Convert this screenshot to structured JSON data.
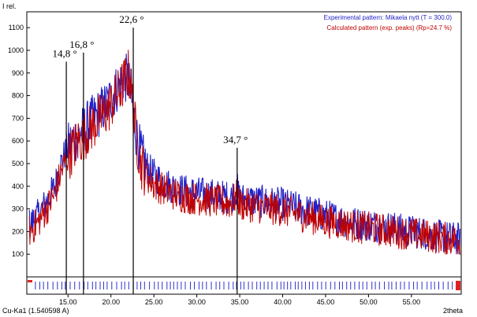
{
  "chart_data": {
    "type": "line",
    "ylabel": "I rel.",
    "xlabel": "2theta",
    "xlim": [
      10.2,
      60.8
    ],
    "ylim": [
      0,
      1170
    ],
    "x_ticks": [
      15,
      20,
      25,
      30,
      35,
      40,
      45,
      50,
      55
    ],
    "x_tick_labels": [
      "15.00",
      "20.00",
      "25.00",
      "30.00",
      "35.00",
      "40.00",
      "45.00",
      "50.00",
      "55.00"
    ],
    "y_ticks": [
      100,
      200,
      300,
      400,
      500,
      600,
      700,
      800,
      900,
      1000,
      1100
    ],
    "y_tick_labels": [
      "100",
      "200",
      "300",
      "400",
      "500",
      "600",
      "700",
      "800",
      "900",
      "1000",
      "1100"
    ],
    "wavelength_label": "Cu-Ka1 (1.540598 A)",
    "legend": {
      "position": "top-right",
      "entries": [
        {
          "label": "Experimental pattern: Mikaela nytt (T = 300.0)",
          "color": "#1f1fc8"
        },
        {
          "label": "Calculated pattern (exp. peaks) (Rp=24.7 %)",
          "color": "#c00000"
        }
      ]
    },
    "annotations": [
      {
        "label": "14,8 °",
        "x": 14.8,
        "y": 950
      },
      {
        "label": "16,8 °",
        "x": 16.8,
        "y": 990
      },
      {
        "label": "22,6 °",
        "x": 22.6,
        "y": 1100
      },
      {
        "label": "34,7 °",
        "x": 34.7,
        "y": 570
      }
    ],
    "series": [
      {
        "name": "Experimental pattern: Mikaela nytt (T = 300.0)",
        "color": "#1f1fc8",
        "x": [
          10.5,
          11.5,
          12.5,
          13.5,
          14.0,
          14.8,
          15.5,
          16.0,
          16.8,
          17.5,
          18.0,
          18.5,
          19.0,
          19.5,
          20.0,
          20.5,
          21.0,
          21.5,
          22.0,
          22.3,
          22.6,
          23.0,
          23.5,
          24.0,
          24.5,
          25.0,
          26.0,
          27.0,
          28.0,
          29.0,
          30.0,
          31.0,
          32.0,
          33.0,
          34.0,
          34.7,
          35.0,
          36.0,
          37.0,
          38.0,
          39.0,
          40.0,
          41.0,
          42.0,
          43.0,
          44.0,
          45.0,
          46.0,
          47.0,
          48.0,
          49.0,
          50.0,
          51.0,
          52.0,
          53.0,
          54.0,
          55.0,
          56.0,
          57.0,
          58.0,
          59.0,
          60.0,
          60.7
        ],
        "values": [
          230,
          270,
          330,
          400,
          480,
          560,
          600,
          620,
          650,
          680,
          700,
          720,
          740,
          760,
          790,
          820,
          850,
          880,
          870,
          820,
          720,
          620,
          540,
          500,
          470,
          450,
          420,
          400,
          385,
          375,
          370,
          365,
          360,
          355,
          350,
          390,
          345,
          340,
          335,
          330,
          325,
          320,
          310,
          300,
          290,
          280,
          270,
          260,
          250,
          240,
          235,
          230,
          225,
          220,
          215,
          205,
          200,
          195,
          190,
          180,
          175,
          170,
          165
        ]
      },
      {
        "name": "Calculated pattern (exp. peaks) (Rp=24.7 %)",
        "color": "#c00000",
        "x": [
          10.5,
          11.5,
          12.5,
          13.5,
          14.0,
          14.8,
          15.5,
          16.0,
          16.8,
          17.5,
          18.0,
          18.5,
          19.0,
          19.5,
          20.0,
          20.5,
          21.0,
          21.5,
          22.0,
          22.3,
          22.6,
          23.0,
          23.5,
          24.0,
          24.5,
          25.0,
          26.0,
          27.0,
          28.0,
          29.0,
          30.0,
          31.0,
          32.0,
          33.0,
          34.0,
          34.7,
          35.0,
          36.0,
          37.0,
          38.0,
          39.0,
          40.0,
          41.0,
          42.0,
          43.0,
          44.0,
          45.0,
          46.0,
          47.0,
          48.0,
          49.0,
          50.0,
          51.0,
          52.0,
          53.0,
          54.0,
          55.0,
          56.0,
          57.0,
          58.0,
          59.0,
          60.0,
          60.7
        ],
        "values": [
          200,
          240,
          300,
          370,
          440,
          520,
          560,
          590,
          620,
          650,
          670,
          690,
          710,
          730,
          760,
          790,
          820,
          860,
          900,
          860,
          740,
          600,
          500,
          460,
          430,
          410,
          390,
          370,
          360,
          350,
          345,
          340,
          335,
          330,
          325,
          360,
          320,
          315,
          310,
          305,
          300,
          295,
          285,
          275,
          265,
          255,
          245,
          240,
          235,
          225,
          220,
          215,
          210,
          205,
          200,
          195,
          190,
          185,
          180,
          175,
          170,
          165,
          160
        ]
      }
    ]
  }
}
